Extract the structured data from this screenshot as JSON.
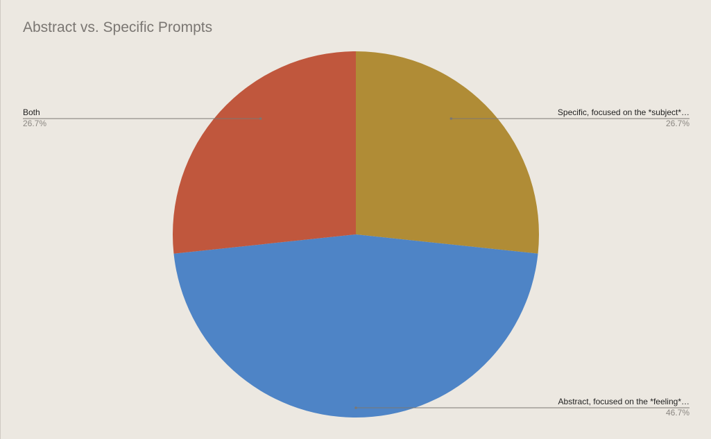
{
  "chart_data": {
    "type": "pie",
    "title": "Abstract vs. Specific Prompts",
    "slices": [
      {
        "label": "Specific, focused on the *subject*…",
        "value": 26.7,
        "value_label": "26.7%",
        "color": "#b08c36"
      },
      {
        "label": "Abstract, focused on the *feeling*…",
        "value": 46.7,
        "value_label": "46.7%",
        "color": "#4e84c6"
      },
      {
        "label": "Both",
        "value": 26.7,
        "value_label": "26.7%",
        "color": "#c0573d"
      }
    ],
    "start_angle_deg": 0,
    "direction": "clockwise",
    "legend": "labels outside with leader lines"
  }
}
